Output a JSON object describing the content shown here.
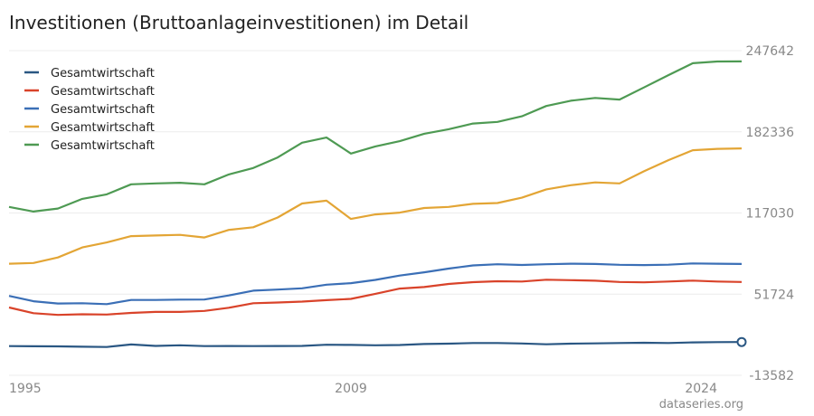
{
  "chart_data": {
    "type": "line",
    "title": "Investitionen (Bruttoanlageinvestitionen) im Detail",
    "source": "dataseries.org",
    "x": [
      1995,
      1996,
      1997,
      1998,
      1999,
      2000,
      2001,
      2002,
      2003,
      2004,
      2005,
      2006,
      2007,
      2008,
      2009,
      2010,
      2011,
      2012,
      2013,
      2014,
      2015,
      2016,
      2017,
      2018,
      2019,
      2020,
      2021,
      2022,
      2023,
      2024,
      2025
    ],
    "xticks": [
      "1995",
      "2009",
      "2024"
    ],
    "yticks": [
      "247642",
      "182336",
      "117030",
      "51724",
      "-13582"
    ],
    "ylim": [
      -13582,
      247642
    ],
    "grid": true,
    "legend_position": "top-left",
    "series": [
      {
        "name": "Gesamtwirtschaft",
        "color": "#2a5783",
        "values": [
          9900,
          9800,
          9700,
          9400,
          9200,
          11200,
          10100,
          10600,
          9900,
          10000,
          9900,
          10000,
          10100,
          11000,
          10900,
          10600,
          10800,
          11600,
          11900,
          12400,
          12400,
          12000,
          11400,
          11900,
          12100,
          12400,
          12600,
          12400,
          12900,
          13100,
          13200
        ]
      },
      {
        "name": "Gesamtwirtschaft",
        "color": "#d9432a",
        "values": [
          41000,
          36400,
          35000,
          35500,
          35300,
          36600,
          37400,
          37400,
          38200,
          40800,
          44400,
          45000,
          45700,
          46900,
          47900,
          52000,
          56200,
          57400,
          59900,
          61400,
          62100,
          61900,
          63300,
          63000,
          62500,
          61500,
          61200,
          61900,
          62600,
          61900,
          61500
        ]
      },
      {
        "name": "Gesamtwirtschaft",
        "color": "#3b6fb6",
        "values": [
          50300,
          46000,
          44200,
          44400,
          43700,
          47000,
          47000,
          47300,
          47400,
          50700,
          54500,
          55400,
          56400,
          59300,
          60600,
          63200,
          66700,
          69300,
          72300,
          74800,
          75800,
          75200,
          75800,
          76200,
          76000,
          75300,
          75100,
          75400,
          76400,
          76200,
          76000
        ]
      },
      {
        "name": "Gesamtwirtschaft",
        "color": "#e3a535",
        "values": [
          76200,
          76800,
          81200,
          89300,
          93300,
          98400,
          98900,
          99400,
          97300,
          103400,
          105500,
          113400,
          124700,
          126900,
          112200,
          115900,
          117300,
          121000,
          121900,
          124400,
          125000,
          129300,
          136000,
          139400,
          141600,
          140800,
          150600,
          159500,
          167500,
          168600,
          169000
        ]
      },
      {
        "name": "Gesamtwirtschaft",
        "color": "#4e9a53",
        "values": [
          121900,
          118200,
          120600,
          128400,
          132000,
          140100,
          140800,
          141300,
          140100,
          148000,
          153200,
          161700,
          173600,
          177700,
          164800,
          170600,
          174800,
          180800,
          184400,
          189000,
          190300,
          194800,
          203100,
          207300,
          209600,
          208300,
          218000,
          227900,
          237500,
          238900,
          239000
        ]
      }
    ]
  }
}
